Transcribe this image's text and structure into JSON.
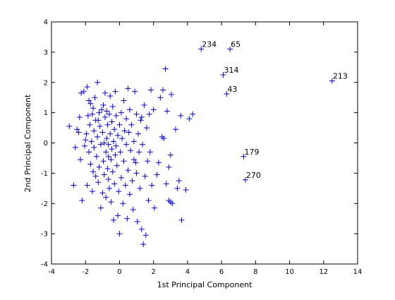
{
  "chart_data": {
    "type": "scatter",
    "title": "",
    "xlabel": "1st Principal Component",
    "ylabel": "2nd Principal Component",
    "xlim": [
      -4,
      14
    ],
    "ylim": [
      -4,
      4
    ],
    "xticks": [
      "-4",
      "-2",
      "0",
      "2",
      "4",
      "6",
      "8",
      "10",
      "12",
      "14"
    ],
    "yticks": [
      "-4",
      "-3",
      "-2",
      "-1",
      "0",
      "1",
      "2",
      "3",
      "4"
    ],
    "grid": false,
    "legend": "none",
    "marker": "+",
    "marker_color": "#0000ff",
    "labeled_points": [
      {
        "label": "234",
        "x": 4.8,
        "y": 3.1
      },
      {
        "label": "65",
        "x": 6.5,
        "y": 3.1
      },
      {
        "label": "314",
        "x": 6.1,
        "y": 2.25
      },
      {
        "label": "213",
        "x": 12.5,
        "y": 2.05
      },
      {
        "label": "43",
        "x": 6.3,
        "y": 1.62
      },
      {
        "label": "179",
        "x": 7.3,
        "y": -0.45
      },
      {
        "label": "270",
        "x": 7.4,
        "y": -1.22
      }
    ],
    "points": [
      [
        -2.95,
        0.55
      ],
      [
        -2.7,
        -1.4
      ],
      [
        -2.6,
        -0.15
      ],
      [
        -2.5,
        0.45
      ],
      [
        -2.4,
        0.35
      ],
      [
        -2.35,
        0.85
      ],
      [
        -2.3,
        -0.55
      ],
      [
        -2.25,
        1.65
      ],
      [
        -2.2,
        -1.9
      ],
      [
        -2.1,
        1.7
      ],
      [
        -2.05,
        -0.1
      ],
      [
        -2.0,
        0.1
      ],
      [
        -1.95,
        0.3
      ],
      [
        -1.9,
        1.85
      ],
      [
        -1.9,
        -1.4
      ],
      [
        -1.85,
        0.9
      ],
      [
        -1.8,
        1.4
      ],
      [
        -1.8,
        -0.3
      ],
      [
        -1.75,
        0.6
      ],
      [
        -1.7,
        -0.7
      ],
      [
        -1.7,
        1.3
      ],
      [
        -1.65,
        0.05
      ],
      [
        -1.6,
        -1.6
      ],
      [
        -1.6,
        0.95
      ],
      [
        -1.55,
        -0.95
      ],
      [
        -1.55,
        1.15
      ],
      [
        -1.5,
        0.4
      ],
      [
        -1.5,
        -0.15
      ],
      [
        -1.45,
        1.5
      ],
      [
        -1.4,
        -1.1
      ],
      [
        -1.4,
        0.75
      ],
      [
        -1.35,
        -0.45
      ],
      [
        -1.3,
        0.2
      ],
      [
        -1.3,
        2.0
      ],
      [
        -1.25,
        -1.3
      ],
      [
        -1.2,
        1.0
      ],
      [
        -1.2,
        -0.8
      ],
      [
        -1.15,
        0.55
      ],
      [
        -1.1,
        -2.15
      ],
      [
        -1.1,
        -0.05
      ],
      [
        -1.05,
        1.1
      ],
      [
        -1.0,
        -1.65
      ],
      [
        -1.0,
        0.35
      ],
      [
        -0.95,
        -0.6
      ],
      [
        -0.95,
        1.25
      ],
      [
        -0.9,
        0.0
      ],
      [
        -0.9,
        -1.05
      ],
      [
        -0.85,
        0.85
      ],
      [
        -0.85,
        1.65
      ],
      [
        -0.8,
        -0.3
      ],
      [
        -0.8,
        -1.8
      ],
      [
        -0.75,
        0.15
      ],
      [
        -0.75,
        1.05
      ],
      [
        -0.7,
        -0.85
      ],
      [
        -0.7,
        0.6
      ],
      [
        -0.65,
        -1.2
      ],
      [
        -0.65,
        -0.05
      ],
      [
        -0.6,
        0.95
      ],
      [
        -0.6,
        -1.5
      ],
      [
        -0.55,
        0.3
      ],
      [
        -0.55,
        1.55
      ],
      [
        -0.5,
        -0.55
      ],
      [
        -0.5,
        -1.95
      ],
      [
        -0.45,
        0.7
      ],
      [
        -0.45,
        -0.2
      ],
      [
        -0.4,
        -0.95
      ],
      [
        -0.4,
        1.2
      ],
      [
        -0.35,
        0.05
      ],
      [
        -0.35,
        -2.55
      ],
      [
        -0.3,
        0.45
      ],
      [
        -0.3,
        -1.35
      ],
      [
        -0.25,
        -0.4
      ],
      [
        -0.25,
        1.7
      ],
      [
        -0.2,
        0.9
      ],
      [
        -0.2,
        -0.1
      ],
      [
        -0.15,
        -0.75
      ],
      [
        -0.1,
        -2.4
      ],
      [
        -0.1,
        0.25
      ],
      [
        -0.05,
        -1.6
      ],
      [
        0.0,
        0.6
      ],
      [
        0.0,
        -3.0
      ],
      [
        0.05,
        -0.3
      ],
      [
        0.1,
        1.0
      ],
      [
        0.1,
        -1.15
      ],
      [
        0.15,
        0.15
      ],
      [
        0.2,
        -2.0
      ],
      [
        0.25,
        -0.6
      ],
      [
        0.25,
        1.4
      ],
      [
        0.3,
        0.4
      ],
      [
        0.35,
        -1.4
      ],
      [
        0.4,
        -0.05
      ],
      [
        0.4,
        0.8
      ],
      [
        0.45,
        -2.5
      ],
      [
        0.5,
        -0.9
      ],
      [
        0.55,
        0.35
      ],
      [
        0.6,
        -1.7
      ],
      [
        0.6,
        1.1
      ],
      [
        0.65,
        -0.25
      ],
      [
        0.7,
        0.6
      ],
      [
        0.75,
        -1.25
      ],
      [
        0.8,
        -2.2
      ],
      [
        0.85,
        0.05
      ],
      [
        0.9,
        1.7
      ],
      [
        0.95,
        -0.65
      ],
      [
        1.0,
        0.95
      ],
      [
        1.0,
        -1.0
      ],
      [
        1.05,
        -2.6
      ],
      [
        1.1,
        0.3
      ],
      [
        1.15,
        -0.3
      ],
      [
        1.2,
        -1.5
      ],
      [
        1.25,
        0.75
      ],
      [
        1.3,
        -2.85
      ],
      [
        1.35,
        -0.05
      ],
      [
        1.4,
        -3.35
      ],
      [
        1.45,
        1.25
      ],
      [
        1.5,
        -1.1
      ],
      [
        1.55,
        -3.05
      ],
      [
        1.6,
        0.5
      ],
      [
        1.65,
        -0.6
      ],
      [
        1.7,
        -1.9
      ],
      [
        1.75,
        0.95
      ],
      [
        1.8,
        -0.3
      ],
      [
        1.85,
        1.75
      ],
      [
        1.9,
        -1.4
      ],
      [
        2.0,
        1.1
      ],
      [
        2.05,
        -2.15
      ],
      [
        2.2,
        -1.05
      ],
      [
        2.3,
        -0.65
      ],
      [
        2.4,
        1.5
      ],
      [
        2.5,
        0.2
      ],
      [
        2.55,
        1.75
      ],
      [
        2.6,
        0.15
      ],
      [
        2.7,
        2.45
      ],
      [
        2.75,
        -1.35
      ],
      [
        2.8,
        1.05
      ],
      [
        2.9,
        -0.8
      ],
      [
        3.0,
        -1.95
      ],
      [
        3.0,
        -0.4
      ],
      [
        3.05,
        1.6
      ],
      [
        3.1,
        -2.0
      ],
      [
        3.3,
        0.45
      ],
      [
        3.4,
        -1.5
      ],
      [
        3.5,
        -1.25
      ],
      [
        3.6,
        0.9
      ],
      [
        3.65,
        -2.55
      ],
      [
        3.9,
        -1.55
      ],
      [
        4.1,
        0.8
      ],
      [
        4.3,
        0.95
      ],
      [
        2.9,
        -1.9
      ],
      [
        1.3,
        0.85
      ],
      [
        -0.65,
        -0.45
      ],
      [
        0.85,
        -0.55
      ],
      [
        -1.25,
        0.75
      ],
      [
        0.5,
        1.8
      ]
    ]
  }
}
